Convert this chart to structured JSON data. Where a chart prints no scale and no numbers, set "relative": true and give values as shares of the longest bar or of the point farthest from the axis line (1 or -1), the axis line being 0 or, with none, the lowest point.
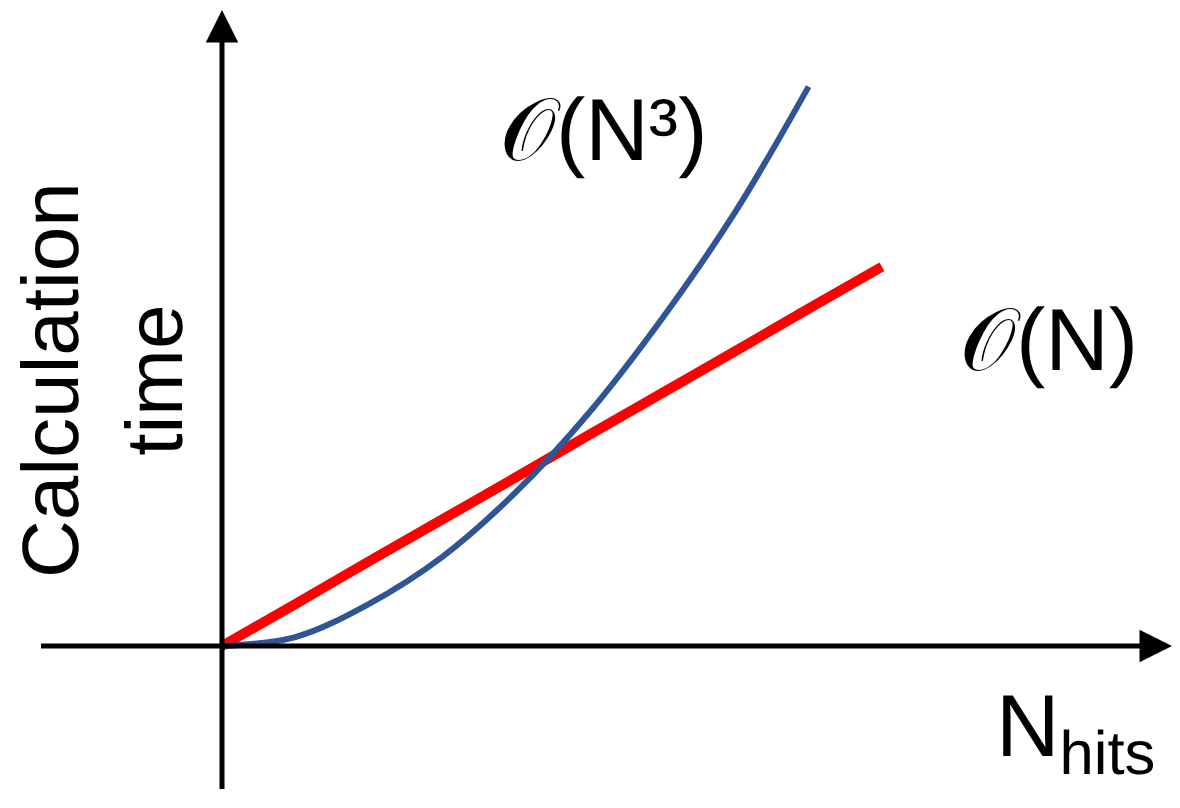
{
  "chart_data": {
    "type": "line",
    "relative": true,
    "xlabel": "N$_{hits}$",
    "ylabel": "Calculation\ntime",
    "categories": [
      null,
      null,
      null,
      null,
      null,
      null,
      null,
      null,
      null,
      null
    ],
    "series": [
      {
        "name": "𝒪(N³)",
        "color": "#2f5597",
        "values": [
          0,
          0.016,
          0.075,
          0.159,
          0.274,
          0.416,
          0.585,
          0.776,
          1,
          null
        ]
      },
      {
        "name": "𝒪(N)",
        "color": "#ff0000",
        "values": [
          0,
          0.075,
          0.151,
          0.226,
          0.301,
          0.377,
          0.452,
          0.527,
          0.603,
          0.678
        ]
      }
    ],
    "legend": false,
    "marker": "none",
    "line_style": "solid"
  }
}
